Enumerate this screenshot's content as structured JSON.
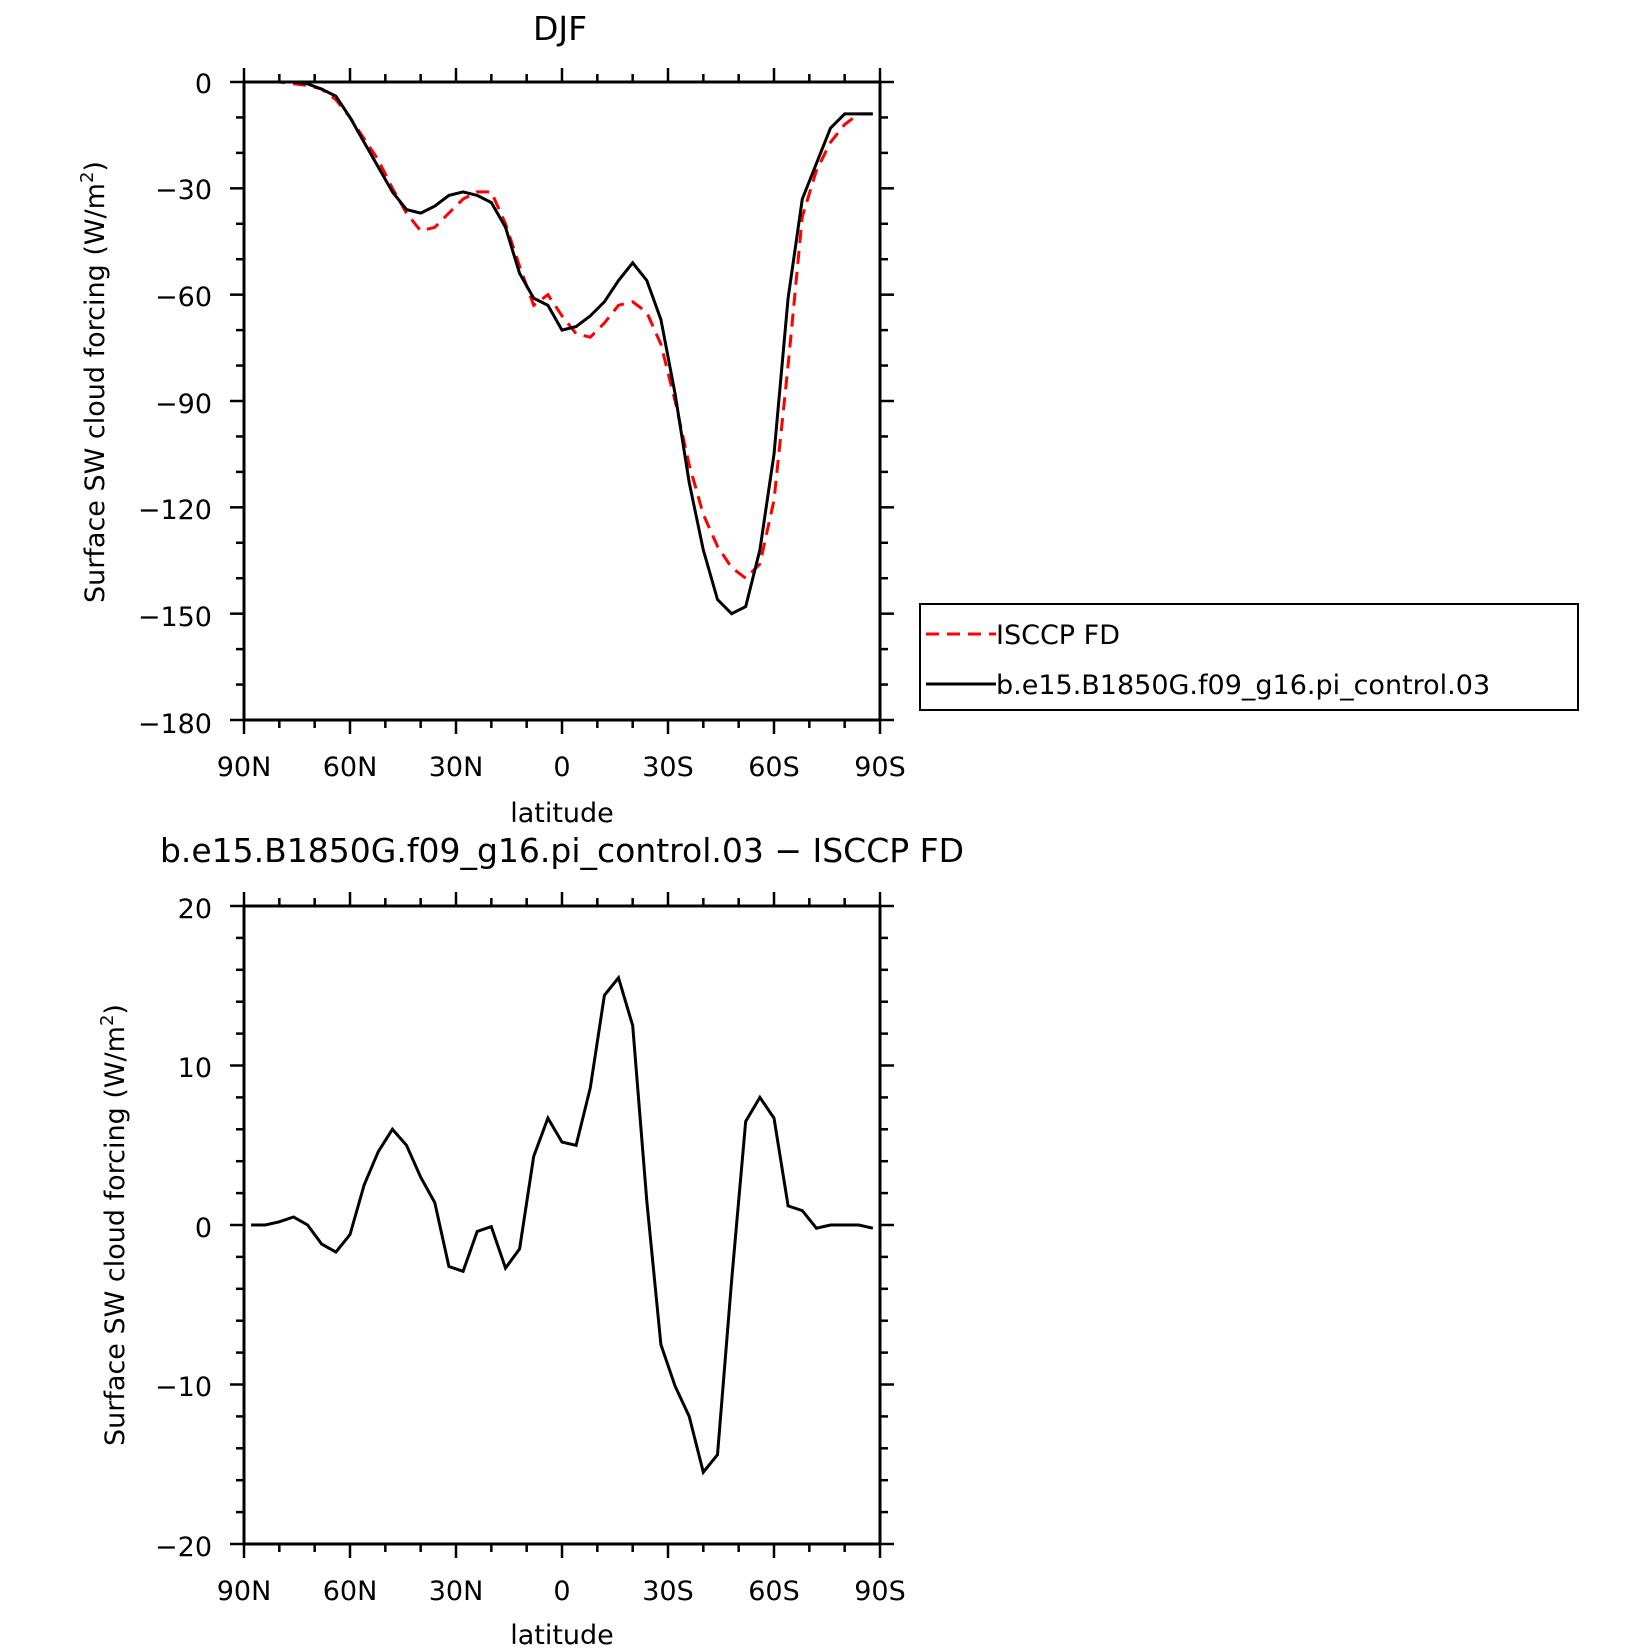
{
  "colors": {
    "isccp": "#ff0000",
    "model": "#000000",
    "axis": "#000000"
  },
  "chart_data": [
    {
      "type": "line",
      "title": "DJF",
      "xlabel": "latitude",
      "ylabel": "Surface SW cloud forcing (W/m",
      "ylabel_sup": "2",
      "ylabel_end": ")",
      "x_ticks": [
        "90N",
        "60N",
        "30N",
        "0",
        "30S",
        "60S",
        "90S"
      ],
      "y_ticks": [
        "0",
        "−30",
        "−60",
        "−90",
        "−120",
        "−150",
        "−180"
      ],
      "ylim": [
        -180,
        0
      ],
      "grid": false,
      "legend_position": "right",
      "x": [
        "88N",
        "84N",
        "80N",
        "76N",
        "72N",
        "68N",
        "64N",
        "60N",
        "56N",
        "52N",
        "48N",
        "44N",
        "40N",
        "36N",
        "32N",
        "28N",
        "24N",
        "20N",
        "16N",
        "12N",
        "8N",
        "4N",
        "0",
        "4S",
        "8S",
        "12S",
        "16S",
        "20S",
        "24S",
        "28S",
        "32S",
        "36S",
        "40S",
        "44S",
        "48S",
        "52S",
        "56S",
        "60S",
        "64S",
        "68S",
        "72S",
        "76S",
        "80S",
        "84S",
        "88S"
      ],
      "series": [
        {
          "name": "ISCCP FD",
          "style": "dashed",
          "color": "red",
          "values": [
            0,
            0,
            0,
            -0.5,
            -1,
            -2,
            -5,
            -10,
            -16,
            -22,
            -30,
            -37,
            -42,
            -41,
            -37,
            -33,
            -31,
            -31,
            -40,
            -52,
            -63,
            -60,
            -66,
            -71,
            -72,
            -68,
            -63,
            -62,
            -65,
            -74,
            -90,
            -108,
            -122,
            -131,
            -137,
            -140,
            -136,
            -118,
            -80,
            -38,
            -25,
            -17,
            -12,
            -9,
            -9
          ]
        },
        {
          "name": "b.e15.B1850G.f09_g16.pi_control.03",
          "style": "solid",
          "color": "black",
          "values": [
            0,
            0,
            0,
            0,
            -0.5,
            -2,
            -4,
            -10,
            -17,
            -24,
            -31,
            -36,
            -37,
            -35,
            -32,
            -31,
            -32,
            -34,
            -41,
            -54,
            -61,
            -63,
            -70,
            -69,
            -66,
            -62,
            -56,
            -51,
            -56,
            -67,
            -88,
            -113,
            -132,
            -146,
            -150,
            -148,
            -132,
            -105,
            -61,
            -33,
            -23,
            -13,
            -9,
            -9,
            -9
          ]
        }
      ]
    },
    {
      "type": "line",
      "title": "b.e15.B1850G.f09_g16.pi_control.03 − ISCCP FD",
      "xlabel": "latitude",
      "ylabel": "Surface SW cloud forcing (W/m",
      "ylabel_sup": "2",
      "ylabel_end": ")",
      "x_ticks": [
        "90N",
        "60N",
        "30N",
        "0",
        "30S",
        "60S",
        "90S"
      ],
      "y_ticks": [
        "20",
        "10",
        "0",
        "−10",
        "−20"
      ],
      "ylim": [
        -20,
        20
      ],
      "grid": false,
      "x": [
        "88N",
        "84N",
        "80N",
        "76N",
        "72N",
        "68N",
        "64N",
        "60N",
        "56N",
        "52N",
        "48N",
        "44N",
        "40N",
        "36N",
        "32N",
        "28N",
        "24N",
        "20N",
        "16N",
        "12N",
        "8N",
        "4N",
        "0",
        "4S",
        "8S",
        "12S",
        "16S",
        "20S",
        "24S",
        "28S",
        "32S",
        "36S",
        "40S",
        "44S",
        "48S",
        "52S",
        "56S",
        "60S",
        "64S",
        "68S",
        "72S",
        "76S",
        "80S",
        "84S",
        "88S"
      ],
      "series": [
        {
          "name": "",
          "style": "solid",
          "color": "black",
          "values": [
            0,
            0,
            0.2,
            0.5,
            0,
            -1.2,
            -1.7,
            -0.6,
            2.5,
            4.6,
            6,
            5,
            3,
            1.4,
            -2.6,
            -2.9,
            -0.4,
            -0.1,
            -2.7,
            -1.5,
            4.3,
            6.7,
            5.2,
            5,
            8.6,
            14.4,
            15.5,
            12.5,
            1.5,
            -7.5,
            -10.1,
            -12,
            -15.5,
            -14.4,
            -3.5,
            6.5,
            8,
            6.7,
            1.2,
            0.9,
            -0.2,
            0,
            0,
            0,
            -0.2
          ]
        }
      ]
    }
  ],
  "legend": {
    "entries": [
      "ISCCP FD",
      "b.e15.B1850G.f09_g16.pi_control.03"
    ]
  }
}
